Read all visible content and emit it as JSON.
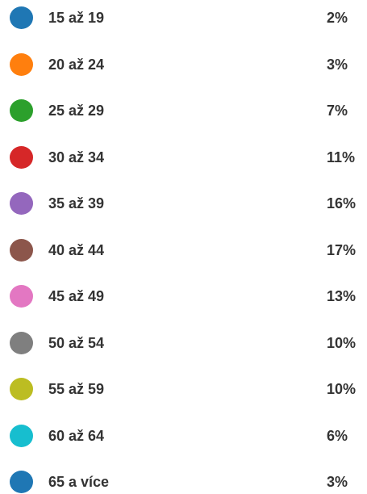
{
  "items": [
    {
      "label": "15 až 19",
      "value": "2%",
      "color": "#1f77b4"
    },
    {
      "label": "20 až 24",
      "value": "3%",
      "color": "#ff7f0e"
    },
    {
      "label": "25 až 29",
      "value": "7%",
      "color": "#2ca02c"
    },
    {
      "label": "30 až 34",
      "value": "11%",
      "color": "#d62728"
    },
    {
      "label": "35 až 39",
      "value": "16%",
      "color": "#9467bd"
    },
    {
      "label": "40 až 44",
      "value": "17%",
      "color": "#8c564b"
    },
    {
      "label": "45 až 49",
      "value": "13%",
      "color": "#e377c2"
    },
    {
      "label": "50 až 54",
      "value": "10%",
      "color": "#7f7f7f"
    },
    {
      "label": "55 až 59",
      "value": "10%",
      "color": "#bcbd22"
    },
    {
      "label": "60 až 64",
      "value": "6%",
      "color": "#17becf"
    },
    {
      "label": "65 a více",
      "value": "3%",
      "color": "#1f77b4"
    }
  ]
}
